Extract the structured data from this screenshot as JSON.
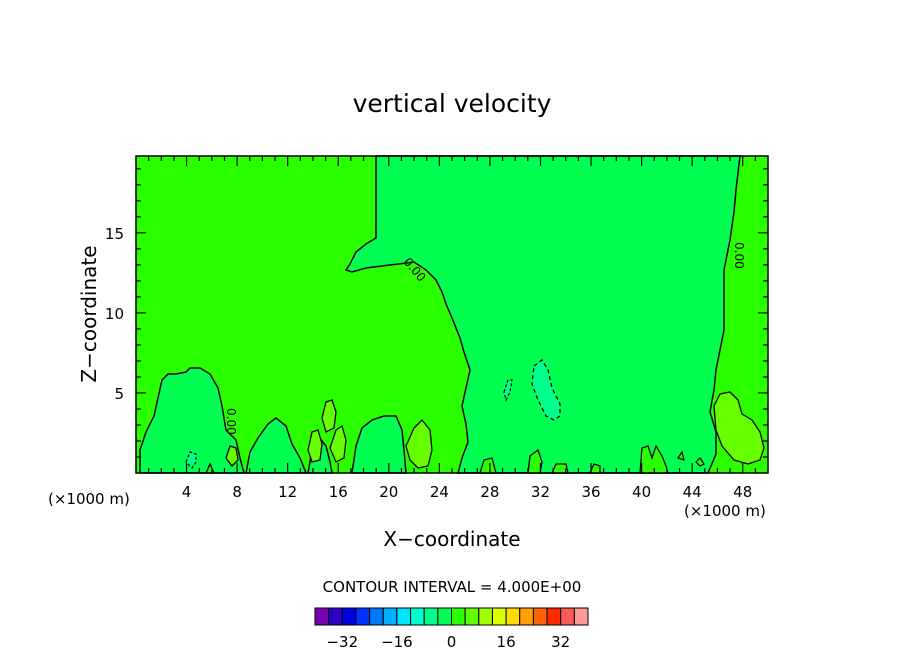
{
  "chart_data": {
    "type": "contour",
    "title": "vertical velocity",
    "xlabel": "X−coordinate",
    "ylabel": "Z−coordinate",
    "x_unit_left": "(×1000 m)",
    "x_unit_right": "(×1000 m)",
    "xlim": [
      0,
      50
    ],
    "ylim": [
      0,
      19.8
    ],
    "x_ticks": [
      4,
      8,
      12,
      16,
      20,
      24,
      28,
      32,
      36,
      40,
      44,
      48
    ],
    "x_tick_labels": [
      "4",
      "8",
      "12",
      "16",
      "20",
      "24",
      "28",
      "32",
      "36",
      "40",
      "44",
      "48"
    ],
    "y_ticks": [
      5,
      10,
      15
    ],
    "y_tick_labels": [
      "5",
      "10",
      "15"
    ],
    "contour_interval_label": "CONTOUR INTERVAL = 4.000E+00",
    "contour_labels": [
      "0.00",
      "0.00",
      "0.00"
    ],
    "colorbar": {
      "levels": [
        -36,
        -32,
        -28,
        -24,
        -20,
        -16,
        -12,
        -8,
        -4,
        0,
        4,
        8,
        12,
        16,
        20,
        24,
        28,
        32,
        36
      ],
      "tick_values": [
        -32,
        -16,
        0,
        16,
        32
      ],
      "tick_labels": [
        "−32",
        "−16",
        "0",
        "16",
        "32"
      ],
      "colors": [
        "#7a00b4",
        "#2d00c8",
        "#0000e6",
        "#0033ff",
        "#0077ff",
        "#00b0ff",
        "#00e6ff",
        "#00ffd0",
        "#00ff8c",
        "#00ff50",
        "#2aff00",
        "#66ff00",
        "#a0ff00",
        "#dcff00",
        "#ffdc00",
        "#ffa000",
        "#ff6400",
        "#ff2a00",
        "#ff5a5a",
        "#ff9a9a"
      ]
    },
    "regions": [
      {
        "name": "background",
        "value_range": [
          0,
          4
        ],
        "color": "#2aff00"
      },
      {
        "name": "central-column",
        "value_range": [
          -4,
          0
        ],
        "color": "#00ff50"
      },
      {
        "name": "lower-left-cell",
        "value_range": [
          -4,
          0
        ],
        "color": "#00ff50"
      },
      {
        "name": "downdraft-core",
        "value_range": [
          -8,
          -4
        ],
        "color": "#00ff8c"
      },
      {
        "name": "updraft-cells",
        "value_range": [
          4,
          8
        ],
        "color": "#66ff00"
      }
    ]
  }
}
